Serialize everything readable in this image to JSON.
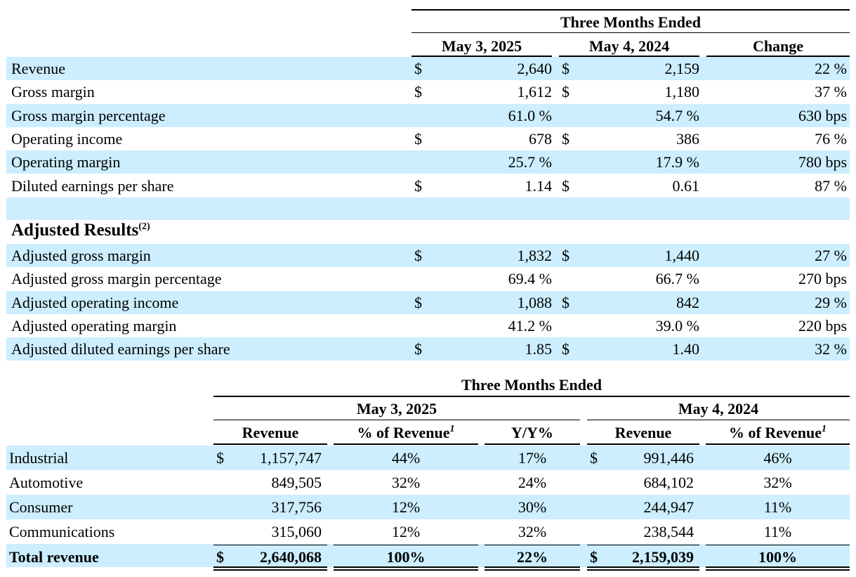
{
  "table1": {
    "group_header": "Three Months Ended",
    "columns": [
      "May 3, 2025",
      "May 4, 2024",
      "Change"
    ],
    "rows": [
      {
        "label": "Revenue",
        "cur1": "$",
        "v1": "2,640",
        "cur2": "$",
        "v2": "2,159",
        "chg": "22 %"
      },
      {
        "label": "Gross margin",
        "cur1": "$",
        "v1": "1,612",
        "cur2": "$",
        "v2": "1,180",
        "chg": "37 %"
      },
      {
        "label": "Gross margin percentage",
        "cur1": "",
        "v1": "61.0 %",
        "cur2": "",
        "v2": "54.7 %",
        "chg": "630 bps"
      },
      {
        "label": "Operating income",
        "cur1": "$",
        "v1": "678",
        "cur2": "$",
        "v2": "386",
        "chg": "76 %"
      },
      {
        "label": "Operating margin",
        "cur1": "",
        "v1": "25.7 %",
        "cur2": "",
        "v2": "17.9 %",
        "chg": "780 bps"
      },
      {
        "label": "Diluted earnings per share",
        "cur1": "$",
        "v1": "1.14",
        "cur2": "$",
        "v2": "0.61",
        "chg": "87 %"
      }
    ],
    "adjusted_heading": "Adjusted Results",
    "adjusted_footnote": "(2)",
    "adjusted_rows": [
      {
        "label": "Adjusted gross margin",
        "cur1": "$",
        "v1": "1,832",
        "cur2": "$",
        "v2": "1,440",
        "chg": "27 %"
      },
      {
        "label": "Adjusted gross margin percentage",
        "cur1": "",
        "v1": "69.4 %",
        "cur2": "",
        "v2": "66.7 %",
        "chg": "270 bps"
      },
      {
        "label": "Adjusted operating income",
        "cur1": "$",
        "v1": "1,088",
        "cur2": "$",
        "v2": "842",
        "chg": "29 %"
      },
      {
        "label": "Adjusted operating margin",
        "cur1": "",
        "v1": "41.2 %",
        "cur2": "",
        "v2": "39.0 %",
        "chg": "220 bps"
      },
      {
        "label": "Adjusted diluted earnings per share",
        "cur1": "$",
        "v1": "1.85",
        "cur2": "$",
        "v2": "1.40",
        "chg": "32 %"
      }
    ]
  },
  "table2": {
    "group_header": "Three Months Ended",
    "period1": "May 3, 2025",
    "period2": "May 4, 2024",
    "col_revenue": "Revenue",
    "col_pct": "% of Revenue",
    "col_pct_mark": "1",
    "col_yy": "Y/Y%",
    "rows": [
      {
        "label": "Industrial",
        "cur1": "$",
        "rev1": "1,157,747",
        "pct1": "44%",
        "yy": "17%",
        "cur2": "$",
        "rev2": "991,446",
        "pct2": "46%"
      },
      {
        "label": "Automotive",
        "cur1": "",
        "rev1": "849,505",
        "pct1": "32%",
        "yy": "24%",
        "cur2": "",
        "rev2": "684,102",
        "pct2": "32%"
      },
      {
        "label": "Consumer",
        "cur1": "",
        "rev1": "317,756",
        "pct1": "12%",
        "yy": "30%",
        "cur2": "",
        "rev2": "244,947",
        "pct2": "11%"
      },
      {
        "label": "Communications",
        "cur1": "",
        "rev1": "315,060",
        "pct1": "12%",
        "yy": "32%",
        "cur2": "",
        "rev2": "238,544",
        "pct2": "11%"
      }
    ],
    "total": {
      "label": "Total revenue",
      "cur1": "$",
      "rev1": "2,640,068",
      "pct1": "100%",
      "yy": "22%",
      "cur2": "$",
      "rev2": "2,159,039",
      "pct2": "100%"
    }
  },
  "colors": {
    "band": "#cceeff",
    "rule": "#000000"
  }
}
